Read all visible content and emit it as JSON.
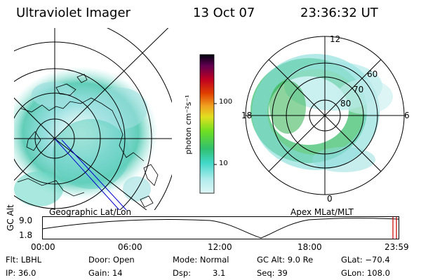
{
  "header": {
    "title": "Ultraviolet Imager",
    "date": "13 Oct 07",
    "time": "23:36:32 UT"
  },
  "left_map": {
    "label": "Geographic Lat/Lon"
  },
  "right_map": {
    "label": "Apex MLat/MLT",
    "mlt_labels": {
      "top": "12",
      "left": "18",
      "right": "6",
      "bottom": "0"
    },
    "lat_labels": [
      "60",
      "70",
      "80"
    ]
  },
  "colorbar": {
    "unit": "photon cm⁻²s⁻¹",
    "ticks": [
      "100",
      "10"
    ],
    "scale": "log",
    "colors": [
      "#d0f0f0",
      "#40d8c8",
      "#30c070",
      "#70e020",
      "#e0e020",
      "#f0a020",
      "#e04000",
      "#c00020",
      "#800050",
      "#300040",
      "#000010"
    ]
  },
  "timeline": {
    "axis_label": "GC Alt",
    "y_ticks": [
      "9.0",
      "1.8"
    ],
    "x_ticks": [
      "00:00",
      "06:00",
      "12:00",
      "18:00",
      "23:59"
    ],
    "current_marker": "23:36"
  },
  "footer": {
    "row1": [
      "Flt: LBHL",
      "Door: Open",
      "Mode: Normal",
      "GC Alt: 9.0 Re",
      "GLat: −70.4"
    ],
    "row2": [
      "IP: 36.0",
      "Gain: 14",
      "Dsp:",
      "3.1",
      "Seq: 39",
      "GLon: 108.0"
    ]
  },
  "colors": {
    "aurora_low": "#8fe0e0",
    "aurora_mid": "#40c8b0",
    "aurora_green": "#30b050",
    "track_marker": "#cc0000",
    "orbit_line": "#0000cc"
  }
}
